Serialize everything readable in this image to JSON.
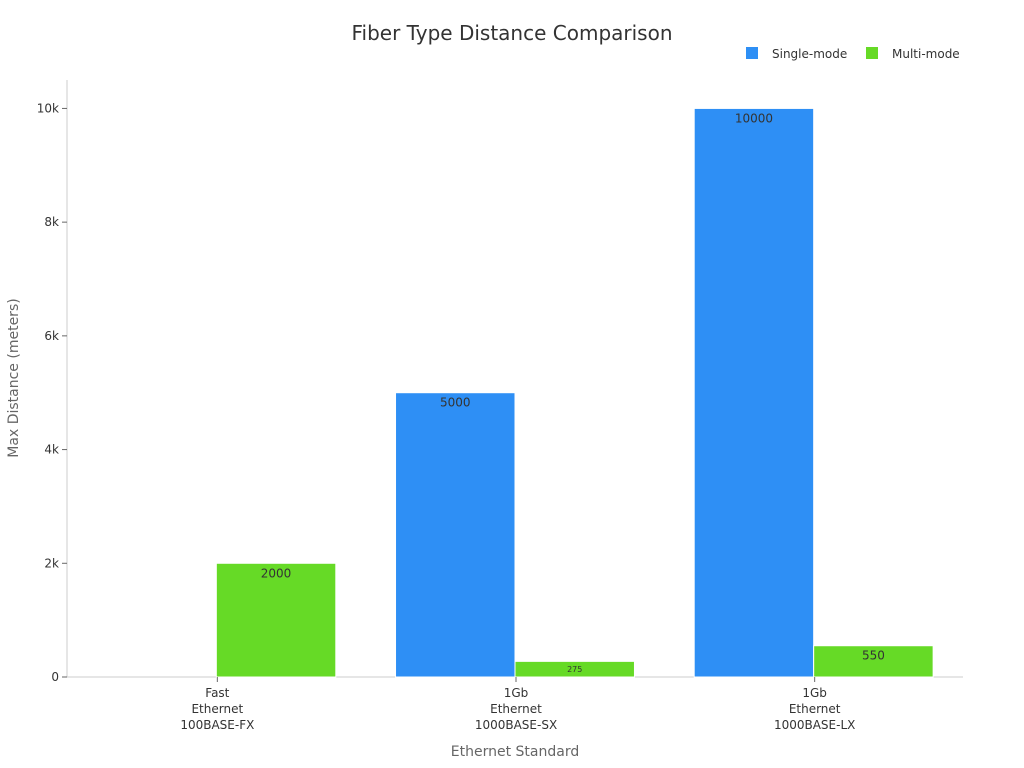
{
  "chart_data": {
    "type": "bar",
    "title": "Fiber Type Distance Comparison",
    "xlabel": "Ethernet Standard",
    "ylabel": "Max Distance (meters)",
    "categories": [
      [
        "Fast",
        "Ethernet",
        "100BASE-FX"
      ],
      [
        "1Gb",
        "Ethernet",
        "1000BASE-SX"
      ],
      [
        "1Gb",
        "Ethernet",
        "1000BASE-LX"
      ]
    ],
    "series": [
      {
        "name": "Single-mode",
        "color": "#2E8FF5",
        "values": [
          null,
          5000,
          10000
        ]
      },
      {
        "name": "Multi-mode",
        "color": "#66DA26",
        "values": [
          2000,
          275,
          550
        ]
      }
    ],
    "ylim": [
      0,
      10500
    ],
    "yticks": [
      0,
      2000,
      4000,
      6000,
      8000,
      10000
    ],
    "ytick_labels": [
      "0",
      "2k",
      "4k",
      "6k",
      "8k",
      "10k"
    ],
    "legend_position": "top-right",
    "grid": false
  }
}
